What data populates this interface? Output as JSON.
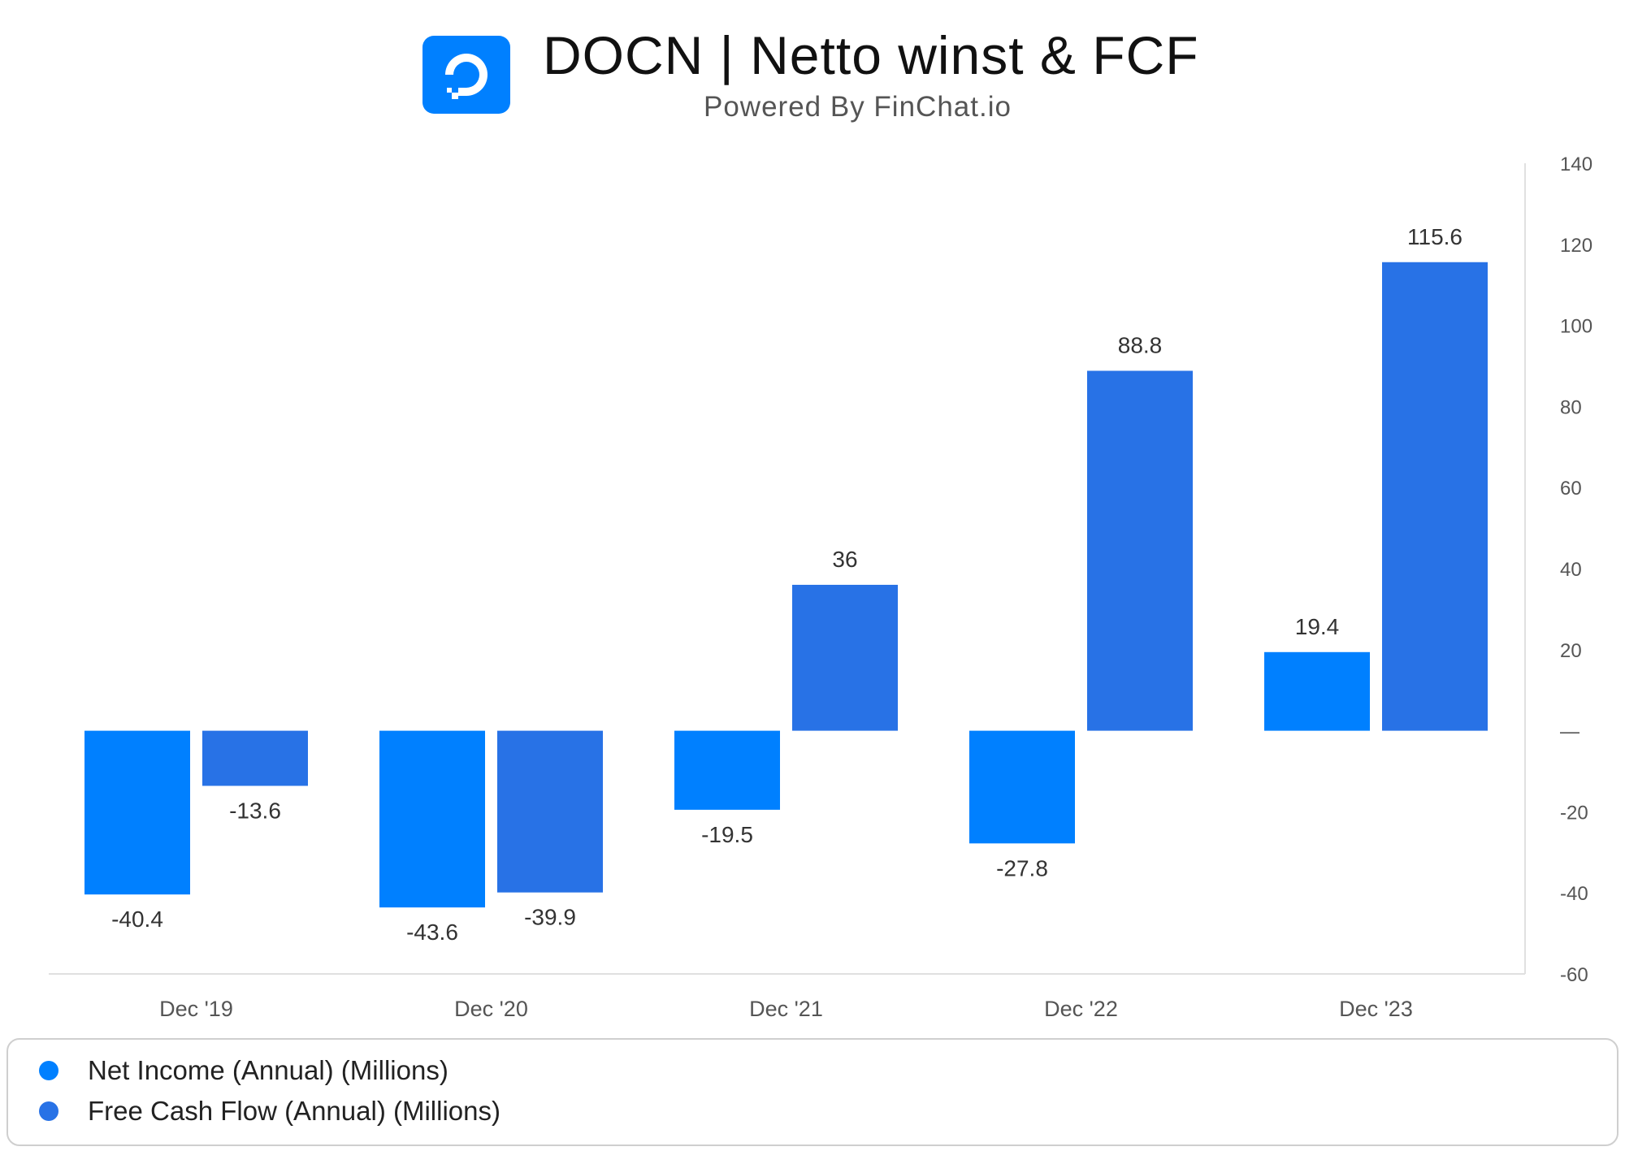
{
  "header": {
    "title": "DOCN | Netto winst & FCF",
    "subtitle": "Powered By FinChat.io",
    "logo_icon": "digitalocean-logo-icon"
  },
  "colors": {
    "net_income": "#0080ff",
    "free_cash_flow": "#2872e6",
    "logo_bg": "#0080ff",
    "gridline": "#e0e0e0",
    "label_text": "#333333",
    "tick_text": "#555555"
  },
  "chart_data": {
    "type": "bar",
    "categories": [
      "Dec '19",
      "Dec '20",
      "Dec '21",
      "Dec '22",
      "Dec '23"
    ],
    "series": [
      {
        "name": "Net Income (Annual) (Millions)",
        "values": [
          -40.4,
          -43.6,
          -19.5,
          -27.8,
          19.4
        ],
        "labels": [
          "-40.4",
          "-43.6",
          "-19.5",
          "-27.8",
          "19.4"
        ]
      },
      {
        "name": "Free Cash Flow (Annual) (Millions)",
        "values": [
          -13.6,
          -39.9,
          36,
          88.8,
          115.6
        ],
        "labels": [
          "-13.6",
          "-39.9",
          "36",
          "88.8",
          "115.6"
        ]
      }
    ],
    "ylim": [
      -60,
      140
    ],
    "yticks": [
      140,
      120,
      100,
      80,
      60,
      40,
      20,
      0,
      -20,
      -40,
      -60
    ],
    "ytick_labels": [
      "140",
      "120",
      "100",
      "80",
      "60",
      "40",
      "20",
      "—",
      "-20",
      "-40",
      "-60"
    ],
    "y_axis_side": "right",
    "grid": false,
    "legend_position": "bottom"
  }
}
